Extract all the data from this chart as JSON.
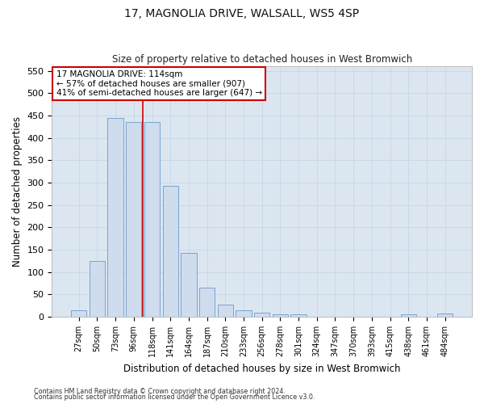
{
  "title": "17, MAGNOLIA DRIVE, WALSALL, WS5 4SP",
  "subtitle": "Size of property relative to detached houses in West Bromwich",
  "xlabel": "Distribution of detached houses by size in West Bromwich",
  "ylabel": "Number of detached properties",
  "footer1": "Contains HM Land Registry data © Crown copyright and database right 2024.",
  "footer2": "Contains public sector information licensed under the Open Government Licence v3.0.",
  "categories": [
    "27sqm",
    "50sqm",
    "73sqm",
    "96sqm",
    "118sqm",
    "141sqm",
    "164sqm",
    "187sqm",
    "210sqm",
    "233sqm",
    "256sqm",
    "278sqm",
    "301sqm",
    "324sqm",
    "347sqm",
    "370sqm",
    "393sqm",
    "415sqm",
    "438sqm",
    "461sqm",
    "484sqm"
  ],
  "values": [
    15,
    125,
    445,
    435,
    435,
    293,
    143,
    65,
    28,
    15,
    9,
    6,
    5,
    1,
    1,
    1,
    1,
    1,
    5,
    1,
    8
  ],
  "bar_color": "#cfdcee",
  "bar_edge_color": "#6a9bc9",
  "grid_color": "#c8d8e8",
  "background_color": "#dce6f1",
  "vline_x_index": 4,
  "vline_color": "#cc0000",
  "annotation_line1": "17 MAGNOLIA DRIVE: 114sqm",
  "annotation_line2": "← 57% of detached houses are smaller (907)",
  "annotation_line3": "41% of semi-detached houses are larger (647) →",
  "annotation_box_color": "#ffffff",
  "annotation_box_edge": "#cc0000",
  "ylim": [
    0,
    560
  ],
  "yticks": [
    0,
    50,
    100,
    150,
    200,
    250,
    300,
    350,
    400,
    450,
    500,
    550
  ]
}
